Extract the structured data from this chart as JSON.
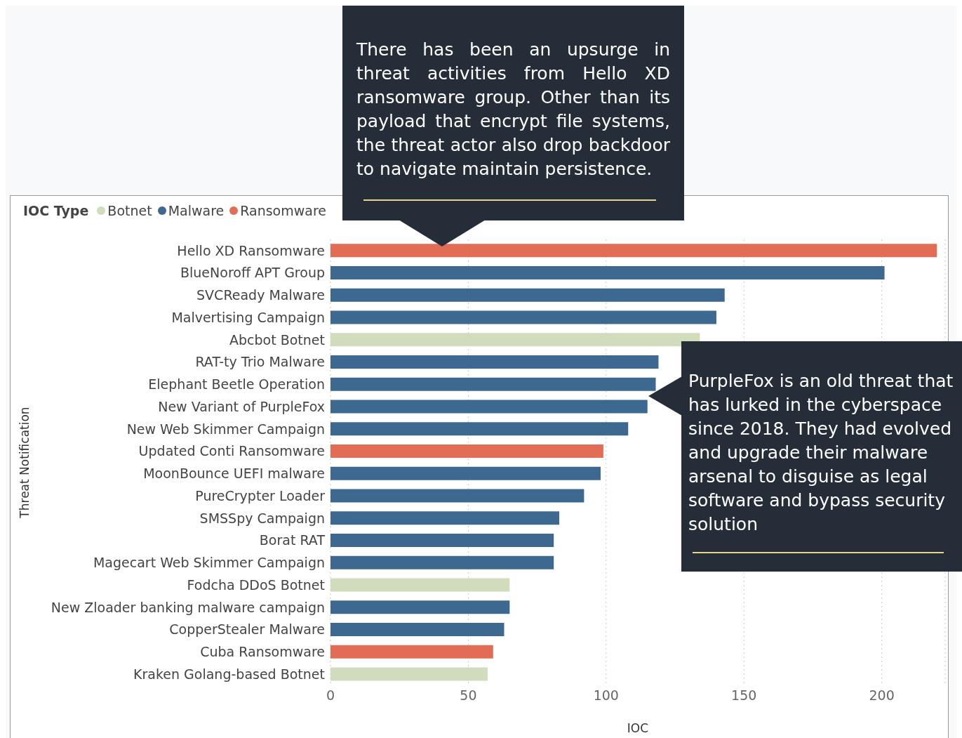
{
  "chart_data": {
    "type": "bar",
    "orientation": "horizontal",
    "stacked": true,
    "categories": [
      "Hello XD Ransomware",
      "BlueNoroff APT Group",
      "SVCReady Malware",
      "Malvertising Campaign",
      "Abcbot Botnet",
      "RAT-ty Trio Malware",
      "Elephant Beetle Operation",
      "New Variant of PurpleFox",
      "New Web Skimmer Campaign",
      "Updated Conti Ransomware",
      "MoonBounce UEFI malware",
      "PureCrypter Loader",
      "SMSSpy Campaign",
      "Borat RAT",
      "Magecart Web Skimmer Campaign",
      "Fodcha DDoS Botnet",
      "New Zloader banking malware campaign",
      "CopperStealer Malware",
      "Cuba Ransomware",
      "Kraken Golang-based Botnet"
    ],
    "series": [
      {
        "name": "Botnet",
        "color": "#d0dcbc",
        "values": [
          null,
          null,
          null,
          null,
          134,
          null,
          null,
          null,
          null,
          null,
          null,
          null,
          null,
          null,
          null,
          65,
          null,
          null,
          null,
          57
        ]
      },
      {
        "name": "Malware",
        "color": "#3d6890",
        "values": [
          null,
          201,
          143,
          140,
          null,
          119,
          118,
          115,
          108,
          null,
          98,
          92,
          83,
          81,
          81,
          null,
          65,
          63,
          null,
          null
        ]
      },
      {
        "name": "Ransomware",
        "color": "#e36c55",
        "values": [
          220,
          null,
          null,
          null,
          null,
          null,
          null,
          null,
          null,
          99,
          null,
          null,
          null,
          null,
          null,
          null,
          null,
          null,
          59,
          null
        ]
      }
    ],
    "xlim": [
      0,
      223
    ],
    "xticks": [
      0,
      50,
      100,
      150,
      200
    ],
    "xlabel": "IOC",
    "ylabel": "Threat Notification",
    "legend_title": "IOC Type",
    "legend": "top left",
    "grid": "x",
    "annotations": [
      "There has been an upsurge in threat activities from Hello XD ransomware group. Other than its payload that encrypt file systems, the threat actor also drop backdoor to navigate maintain persistence.",
      "PurpleFox is an old threat that has lurked in the cyberspace since 2018. They had evolved and upgrade their malware arsenal to disguise as legal software and bypass security solution"
    ]
  }
}
